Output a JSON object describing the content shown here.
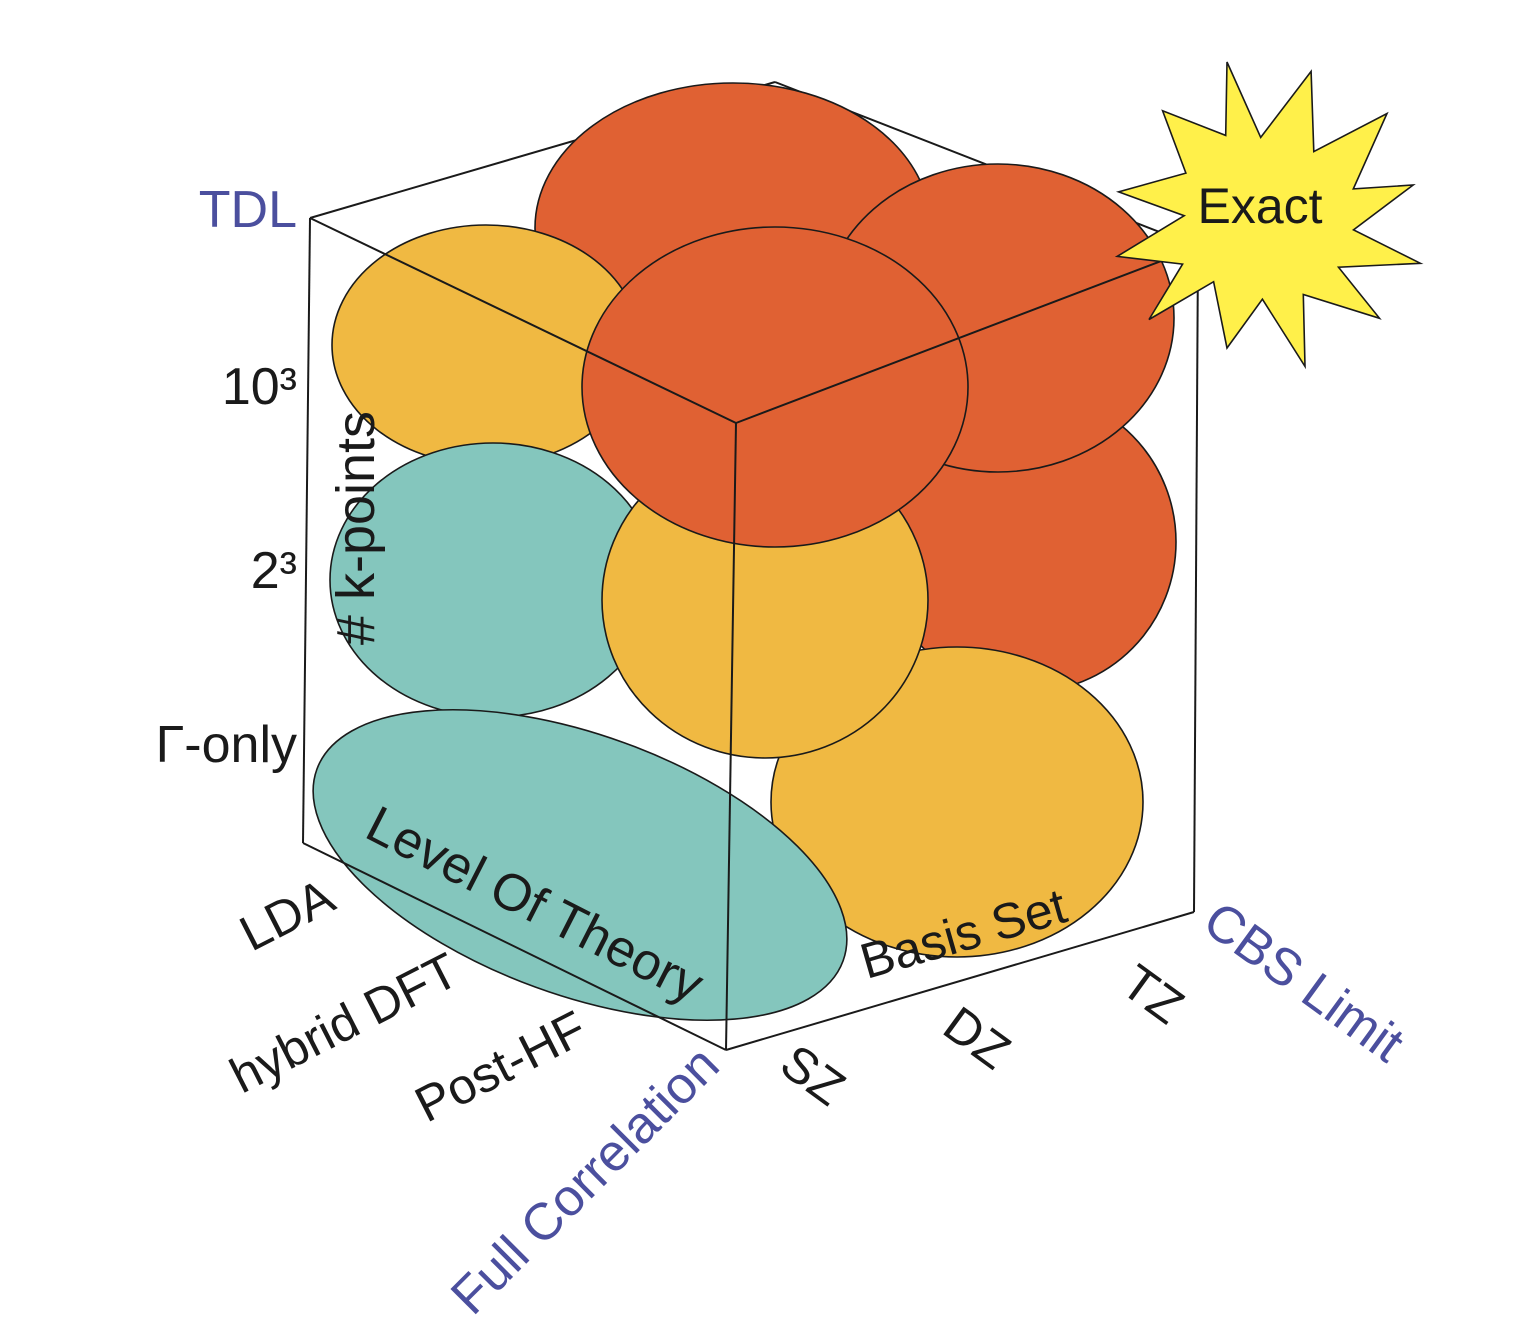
{
  "colors": {
    "teal": "#84C6BD",
    "yellow": "#F0B942",
    "orange": "#E06133",
    "star": "#FFF04A",
    "limit_text": "#4B4F9E",
    "text": "#1a1a1a"
  },
  "vertical_axis": {
    "title": "# k-points",
    "ticks": [
      "Γ-only",
      "2³",
      "10³"
    ],
    "limit": "TDL"
  },
  "level_axis": {
    "title": "Level Of Theory",
    "ticks": [
      "LDA",
      "hybrid DFT",
      "Post-HF"
    ],
    "limit": "Full Correlation"
  },
  "basis_axis": {
    "title": "Basis Set",
    "ticks": [
      "SZ",
      "DZ",
      "TZ"
    ],
    "limit": "CBS Limit"
  },
  "corner_badge": {
    "label": "Exact",
    "icon": "starburst-icon"
  }
}
